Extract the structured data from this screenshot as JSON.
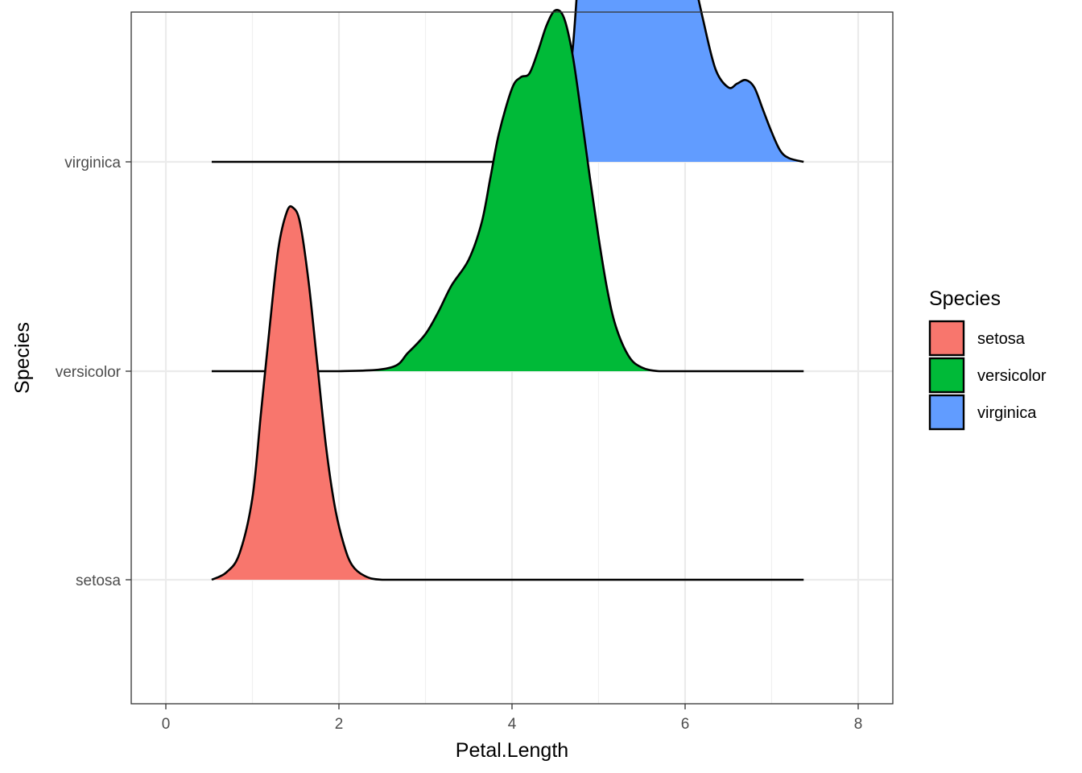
{
  "chart_data": {
    "type": "ridgeline",
    "xlabel": "Petal.Length",
    "ylabel": "Species",
    "xlim": [
      -0.4,
      8.4
    ],
    "x_ticks": [
      0,
      2,
      4,
      6,
      8
    ],
    "x_tick_labels": [
      "0",
      "2",
      "4",
      "6",
      "8"
    ],
    "categories": [
      "setosa",
      "versicolor",
      "virginica"
    ],
    "grid": true,
    "legend": {
      "title": "Species",
      "position": "right",
      "entries": [
        "setosa",
        "versicolor",
        "virginica"
      ]
    },
    "series": [
      {
        "name": "setosa",
        "color": "#F8766D",
        "x": [
          0.53,
          0.7,
          0.85,
          1.0,
          1.1,
          1.2,
          1.3,
          1.4,
          1.47,
          1.55,
          1.65,
          1.75,
          1.85,
          1.95,
          2.05,
          2.15,
          2.3,
          2.5,
          3.0,
          4.0,
          5.0,
          6.0,
          7.37
        ],
        "y": [
          0.0,
          0.02,
          0.07,
          0.22,
          0.45,
          0.68,
          0.89,
          0.99,
          1.0,
          0.96,
          0.8,
          0.58,
          0.36,
          0.2,
          0.1,
          0.04,
          0.01,
          0.0,
          0.0,
          0.0,
          0.0,
          0.0,
          0.0
        ]
      },
      {
        "name": "versicolor",
        "color": "#00BA38",
        "x": [
          0.53,
          2.0,
          2.6,
          2.8,
          3.0,
          3.15,
          3.3,
          3.5,
          3.65,
          3.75,
          3.85,
          4.0,
          4.1,
          4.2,
          4.3,
          4.4,
          4.5,
          4.6,
          4.7,
          4.8,
          4.9,
          5.0,
          5.1,
          5.2,
          5.35,
          5.5,
          5.7,
          6.0,
          7.37
        ],
        "y": [
          0.0,
          0.0,
          0.01,
          0.05,
          0.1,
          0.16,
          0.23,
          0.3,
          0.4,
          0.52,
          0.64,
          0.76,
          0.79,
          0.8,
          0.86,
          0.93,
          0.97,
          0.95,
          0.85,
          0.69,
          0.52,
          0.36,
          0.22,
          0.12,
          0.04,
          0.01,
          0.0,
          0.0,
          0.0
        ]
      },
      {
        "name": "virginica",
        "color": "#619CFF",
        "x": [
          0.53,
          4.0,
          4.3,
          4.5,
          4.6,
          4.7,
          4.8,
          4.9,
          5.0,
          5.07,
          5.15,
          5.25,
          5.35,
          5.45,
          5.55,
          5.63,
          5.72,
          5.85,
          6.0,
          6.2,
          6.35,
          6.5,
          6.6,
          6.7,
          6.8,
          6.9,
          7.0,
          7.1,
          7.2,
          7.37
        ],
        "y": [
          0.0,
          0.0,
          0.02,
          0.08,
          0.15,
          0.3,
          0.62,
          0.87,
          0.98,
          1.0,
          0.9,
          0.8,
          0.78,
          0.88,
          0.97,
          0.99,
          0.92,
          0.76,
          0.6,
          0.39,
          0.25,
          0.2,
          0.21,
          0.22,
          0.2,
          0.14,
          0.08,
          0.03,
          0.01,
          0.0
        ]
      }
    ]
  }
}
